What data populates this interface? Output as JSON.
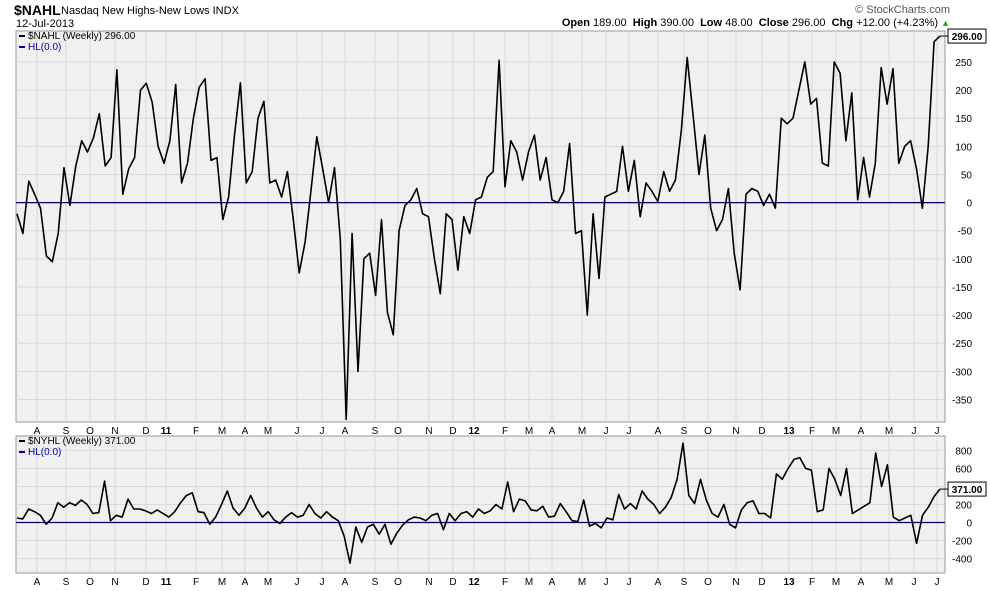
{
  "header": {
    "symbol": "$NAHL",
    "name": "Nasdaq New Highs-New Lows",
    "exchange": "INDX",
    "date": "12-Jul-2013",
    "brand": "© StockCharts.com",
    "open_label": "Open",
    "open": "189.00",
    "high_label": "High",
    "high": "390.00",
    "low_label": "Low",
    "low": "48.00",
    "close_label": "Close",
    "close": "296.00",
    "chg_label": "Chg",
    "chg": "+12.00 (+4.23%)",
    "chg_color": "#22aa22"
  },
  "colors": {
    "price_line": "#000000",
    "zero_line": "#000066",
    "legend_hl": "#000099",
    "panel_bg": "#f0f0f0",
    "grid": "#d8d8d8"
  },
  "chart_data": [
    {
      "type": "line",
      "legend": [
        "$NAHL (Weekly) 296.00",
        "HL(0.0)"
      ],
      "ylim": [
        -390,
        305
      ],
      "yticks": [
        250,
        200,
        150,
        100,
        50,
        0,
        -50,
        -100,
        -150,
        -200,
        -250,
        -300,
        -350
      ],
      "last_value_label": "296.00",
      "reference_line": 0,
      "series": [
        {
          "values": [
            -20,
            -55,
            38,
            15,
            -10,
            -95,
            -105,
            -55,
            62,
            -5,
            65,
            110,
            90,
            115,
            158,
            65,
            80,
            236,
            15,
            60,
            80,
            200,
            212,
            178,
            100,
            70,
            110,
            210,
            35,
            70,
            150,
            205,
            220,
            75,
            80,
            -30,
            10,
            120,
            213,
            35,
            55,
            150,
            180,
            35,
            40,
            10,
            55,
            -30,
            -125,
            -70,
            20,
            117,
            60,
            0,
            62,
            -65,
            -385,
            -55,
            -300,
            -100,
            -90,
            -165,
            -30,
            -195,
            -235,
            -50,
            -5,
            5,
            25,
            -20,
            -25,
            -100,
            -162,
            -20,
            -30,
            -120,
            -25,
            -55,
            5,
            10,
            45,
            55,
            253,
            28,
            110,
            90,
            40,
            90,
            120,
            40,
            80,
            5,
            0,
            20,
            105,
            -55,
            -50,
            -200,
            -20,
            -135,
            10,
            15,
            20,
            100,
            20,
            75,
            -25,
            35,
            20,
            2,
            55,
            20,
            40,
            128,
            258,
            155,
            50,
            120,
            -10,
            -50,
            -30,
            25,
            -90,
            -155,
            15,
            25,
            20,
            -5,
            15,
            -10,
            150,
            140,
            150,
            200,
            250,
            175,
            185,
            70,
            65,
            250,
            230,
            110,
            195,
            5,
            80,
            10,
            70,
            240,
            175,
            238,
            70,
            100,
            110,
            60,
            -10,
            100,
            286,
            296
          ]
        }
      ]
    },
    {
      "type": "line",
      "legend": [
        "$NYHL (Weekly) 371.00",
        "HL(0.0)"
      ],
      "ylim": [
        -560,
        960
      ],
      "yticks": [
        800,
        600,
        400,
        200,
        0,
        -200,
        -400
      ],
      "last_value_label": "371.00",
      "reference_line": 0,
      "series": [
        {
          "values": [
            50,
            40,
            150,
            120,
            80,
            -20,
            50,
            220,
            170,
            220,
            190,
            250,
            200,
            100,
            110,
            460,
            20,
            80,
            60,
            260,
            150,
            150,
            130,
            100,
            140,
            100,
            60,
            120,
            220,
            300,
            330,
            120,
            110,
            -20,
            60,
            200,
            350,
            160,
            80,
            160,
            300,
            160,
            60,
            120,
            30,
            -10,
            60,
            110,
            60,
            80,
            200,
            100,
            50,
            120,
            60,
            20,
            -150,
            -450,
            -50,
            -220,
            -50,
            -20,
            -130,
            -20,
            -240,
            -120,
            -30,
            30,
            60,
            50,
            20,
            80,
            100,
            -80,
            100,
            20,
            100,
            120,
            60,
            150,
            100,
            130,
            200,
            150,
            450,
            120,
            260,
            240,
            140,
            130,
            180,
            60,
            70,
            210,
            120,
            20,
            10,
            250,
            -40,
            -10,
            -60,
            50,
            30,
            310,
            150,
            210,
            150,
            350,
            260,
            200,
            100,
            170,
            280,
            480,
            880,
            300,
            210,
            480,
            250,
            100,
            60,
            200,
            -20,
            -60,
            140,
            220,
            240,
            100,
            100,
            50,
            540,
            480,
            600,
            700,
            720,
            600,
            580,
            120,
            140,
            600,
            480,
            300,
            600,
            100,
            140,
            180,
            220,
            770,
            400,
            640,
            60,
            20,
            50,
            80,
            -230,
            80,
            170,
            290,
            371
          ]
        }
      ]
    }
  ],
  "x_axis": {
    "labels": [
      "A",
      "S",
      "O",
      "N",
      "D",
      "11",
      "F",
      "M",
      "A",
      "M",
      "J",
      "J",
      "A",
      "S",
      "O",
      "N",
      "D",
      "12",
      "F",
      "M",
      "A",
      "M",
      "J",
      "J",
      "A",
      "S",
      "O",
      "N",
      "D",
      "13",
      "F",
      "M",
      "A",
      "M",
      "J",
      "J"
    ],
    "bold": [
      "11",
      "12",
      "13"
    ]
  }
}
